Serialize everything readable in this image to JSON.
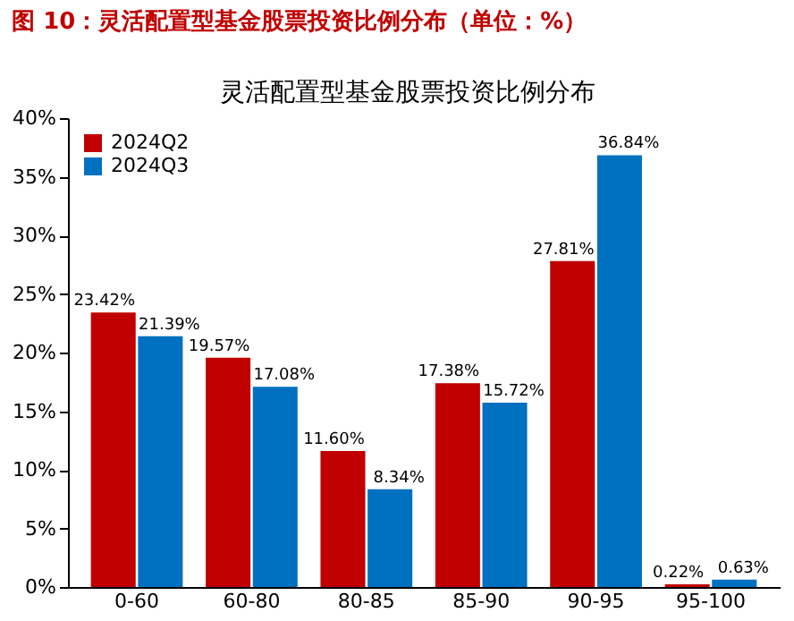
{
  "chart_data": {
    "type": "bar",
    "title": "图 10：灵活配置型基金股票投资比例分布（单位：%）",
    "subtitle": "灵活配置型基金股票投资比例分布",
    "categories": [
      "0-60",
      "60-80",
      "80-85",
      "85-90",
      "90-95",
      "95-100"
    ],
    "series": [
      {
        "name": "2024Q2",
        "color": "#c00000",
        "values": [
          23.42,
          19.57,
          11.6,
          17.38,
          27.81,
          0.22
        ],
        "value_labels": [
          "23.42%",
          "19.57%",
          "11.60%",
          "17.38%",
          "27.81%",
          "0.22%"
        ]
      },
      {
        "name": "2024Q3",
        "color": "#0070c0",
        "values": [
          21.39,
          17.08,
          8.34,
          15.72,
          36.84,
          0.63
        ],
        "value_labels": [
          "21.39%",
          "17.08%",
          "8.34%",
          "15.72%",
          "36.84%",
          "0.63%"
        ]
      }
    ],
    "ylim": [
      0,
      40
    ],
    "yticks": [
      {
        "value": 0,
        "label": "0%"
      },
      {
        "value": 5,
        "label": "5%"
      },
      {
        "value": 10,
        "label": "10%"
      },
      {
        "value": 15,
        "label": "15%"
      },
      {
        "value": 20,
        "label": "20%"
      },
      {
        "value": 25,
        "label": "25%"
      },
      {
        "value": 30,
        "label": "30%"
      },
      {
        "value": 35,
        "label": "35%"
      },
      {
        "value": 40,
        "label": "40%"
      }
    ],
    "grid": false,
    "legend": "top left"
  }
}
